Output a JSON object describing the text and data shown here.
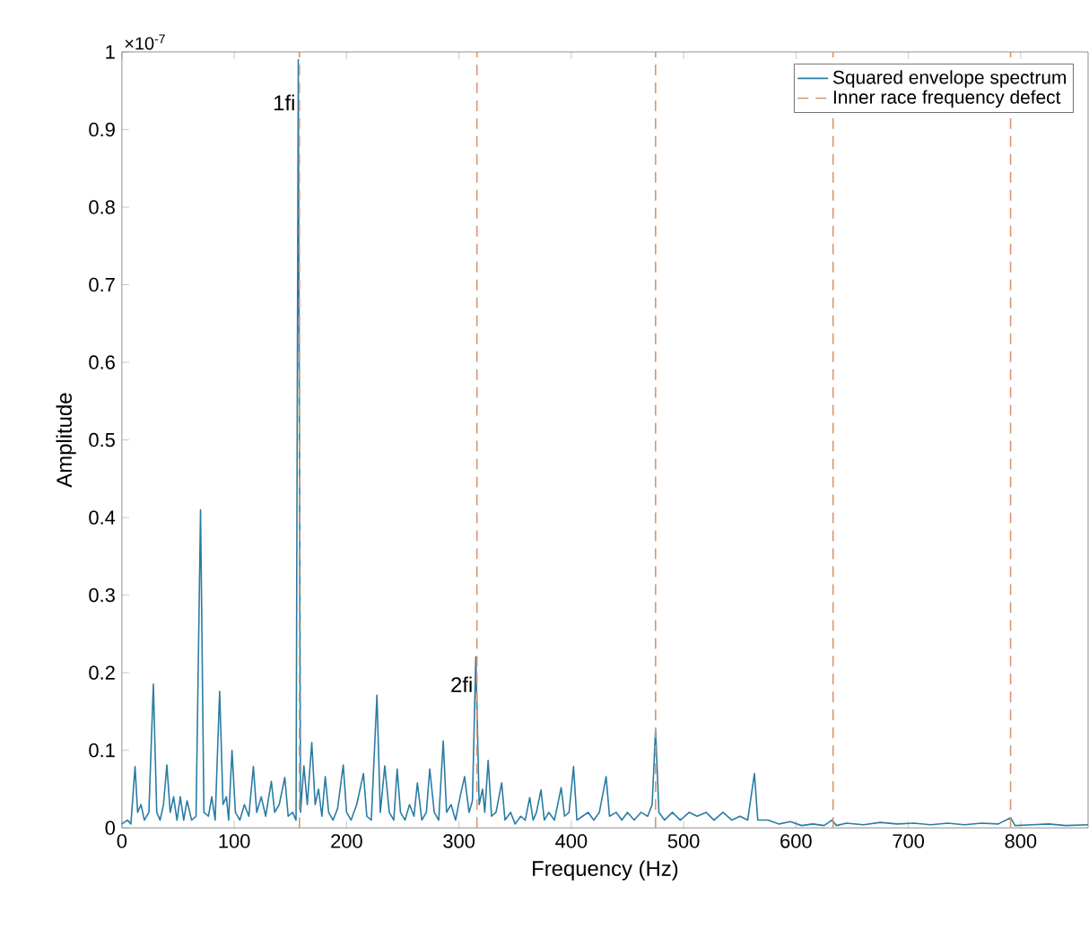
{
  "chart_data": {
    "type": "line",
    "xlabel": "Frequency (Hz)",
    "ylabel": "Amplitude",
    "xlim": [
      0,
      860
    ],
    "ylim": [
      0,
      1
    ],
    "xticks": [
      0,
      100,
      200,
      300,
      400,
      500,
      600,
      700,
      800
    ],
    "yticks": [
      0,
      0.1,
      0.2,
      0.3,
      0.4,
      0.5,
      0.6,
      0.7,
      0.8,
      0.9,
      1
    ],
    "legend": "top right",
    "marker": "none",
    "series": [
      {
        "name": "Squared envelope spectrum",
        "color": "#2a7ca3",
        "line_style": "solid",
        "x": [
          0,
          5,
          8,
          11.7,
          14,
          17,
          20,
          24,
          28,
          31,
          34,
          37,
          40,
          43,
          46,
          49,
          52,
          55,
          58,
          62,
          66,
          70,
          73,
          77,
          80,
          83,
          87,
          90,
          93,
          95,
          98,
          101,
          105,
          109,
          113,
          117,
          120,
          124,
          128,
          133,
          136,
          140,
          145,
          148,
          152,
          155,
          157,
          159,
          162,
          165,
          169,
          172,
          175,
          178,
          181,
          184,
          188,
          192,
          197,
          200,
          204,
          209,
          215,
          218,
          222,
          227,
          230,
          234,
          238,
          242,
          245,
          248,
          252,
          256,
          260,
          263,
          267,
          271,
          274,
          278,
          282,
          286,
          289,
          293,
          297,
          301,
          305,
          309,
          312,
          315,
          318,
          321,
          323,
          326,
          329,
          333,
          338,
          341,
          346,
          350,
          355,
          359,
          363,
          366,
          369,
          373,
          376,
          380,
          385,
          391,
          394,
          398,
          402,
          405,
          410,
          415,
          420,
          425,
          431,
          434,
          440,
          445,
          450,
          456,
          462,
          468,
          472,
          475,
          478,
          483,
          490,
          497,
          505,
          512,
          520,
          527,
          535,
          543,
          550,
          557,
          563,
          566,
          575,
          585,
          595,
          605,
          615,
          625,
          632,
          636,
          645,
          660,
          675,
          690,
          705,
          720,
          735,
          750,
          765,
          780,
          791,
          795,
          810,
          825,
          840,
          860
        ],
        "values": [
          0.005,
          0.01,
          0.005,
          0.079,
          0.02,
          0.03,
          0.01,
          0.02,
          0.185,
          0.02,
          0.01,
          0.03,
          0.081,
          0.02,
          0.04,
          0.01,
          0.04,
          0.01,
          0.035,
          0.01,
          0.015,
          0.41,
          0.02,
          0.015,
          0.04,
          0.01,
          0.176,
          0.03,
          0.04,
          0.01,
          0.1,
          0.02,
          0.01,
          0.03,
          0.015,
          0.079,
          0.02,
          0.04,
          0.015,
          0.06,
          0.02,
          0.03,
          0.065,
          0.015,
          0.02,
          0.01,
          0.99,
          0.02,
          0.08,
          0.03,
          0.11,
          0.03,
          0.05,
          0.015,
          0.066,
          0.02,
          0.01,
          0.025,
          0.081,
          0.02,
          0.01,
          0.03,
          0.07,
          0.015,
          0.01,
          0.171,
          0.02,
          0.08,
          0.02,
          0.01,
          0.076,
          0.02,
          0.01,
          0.03,
          0.015,
          0.058,
          0.01,
          0.02,
          0.076,
          0.02,
          0.01,
          0.112,
          0.02,
          0.03,
          0.01,
          0.04,
          0.066,
          0.02,
          0.035,
          0.22,
          0.03,
          0.05,
          0.02,
          0.087,
          0.015,
          0.02,
          0.058,
          0.01,
          0.02,
          0.005,
          0.015,
          0.01,
          0.039,
          0.01,
          0.02,
          0.049,
          0.01,
          0.02,
          0.01,
          0.052,
          0.015,
          0.02,
          0.079,
          0.01,
          0.015,
          0.02,
          0.01,
          0.02,
          0.066,
          0.015,
          0.02,
          0.01,
          0.02,
          0.01,
          0.02,
          0.015,
          0.03,
          0.127,
          0.02,
          0.01,
          0.02,
          0.01,
          0.02,
          0.015,
          0.02,
          0.01,
          0.02,
          0.01,
          0.015,
          0.01,
          0.07,
          0.01,
          0.01,
          0.005,
          0.008,
          0.003,
          0.005,
          0.003,
          0.01,
          0.003,
          0.006,
          0.004,
          0.007,
          0.005,
          0.006,
          0.004,
          0.006,
          0.004,
          0.006,
          0.005,
          0.013,
          0.003,
          0.004,
          0.005,
          0.003,
          0.004
        ]
      },
      {
        "name": "Inner race frequency defect",
        "color": "#d9956b",
        "line_style": "dashed",
        "x": [
          158,
          158,
          null,
          316,
          316,
          null,
          475,
          475,
          null,
          633,
          633,
          null,
          791,
          791
        ],
        "values": [
          0,
          1,
          null,
          0,
          1,
          null,
          0,
          1,
          null,
          0,
          1,
          null,
          0,
          1
        ]
      }
    ],
    "annotations": [
      "×10$^{-7}$",
      {
        "text": "1fi",
        "x": 158,
        "y": 0.95
      },
      {
        "text": "2fi",
        "x": 316,
        "y": 0.2
      }
    ]
  }
}
